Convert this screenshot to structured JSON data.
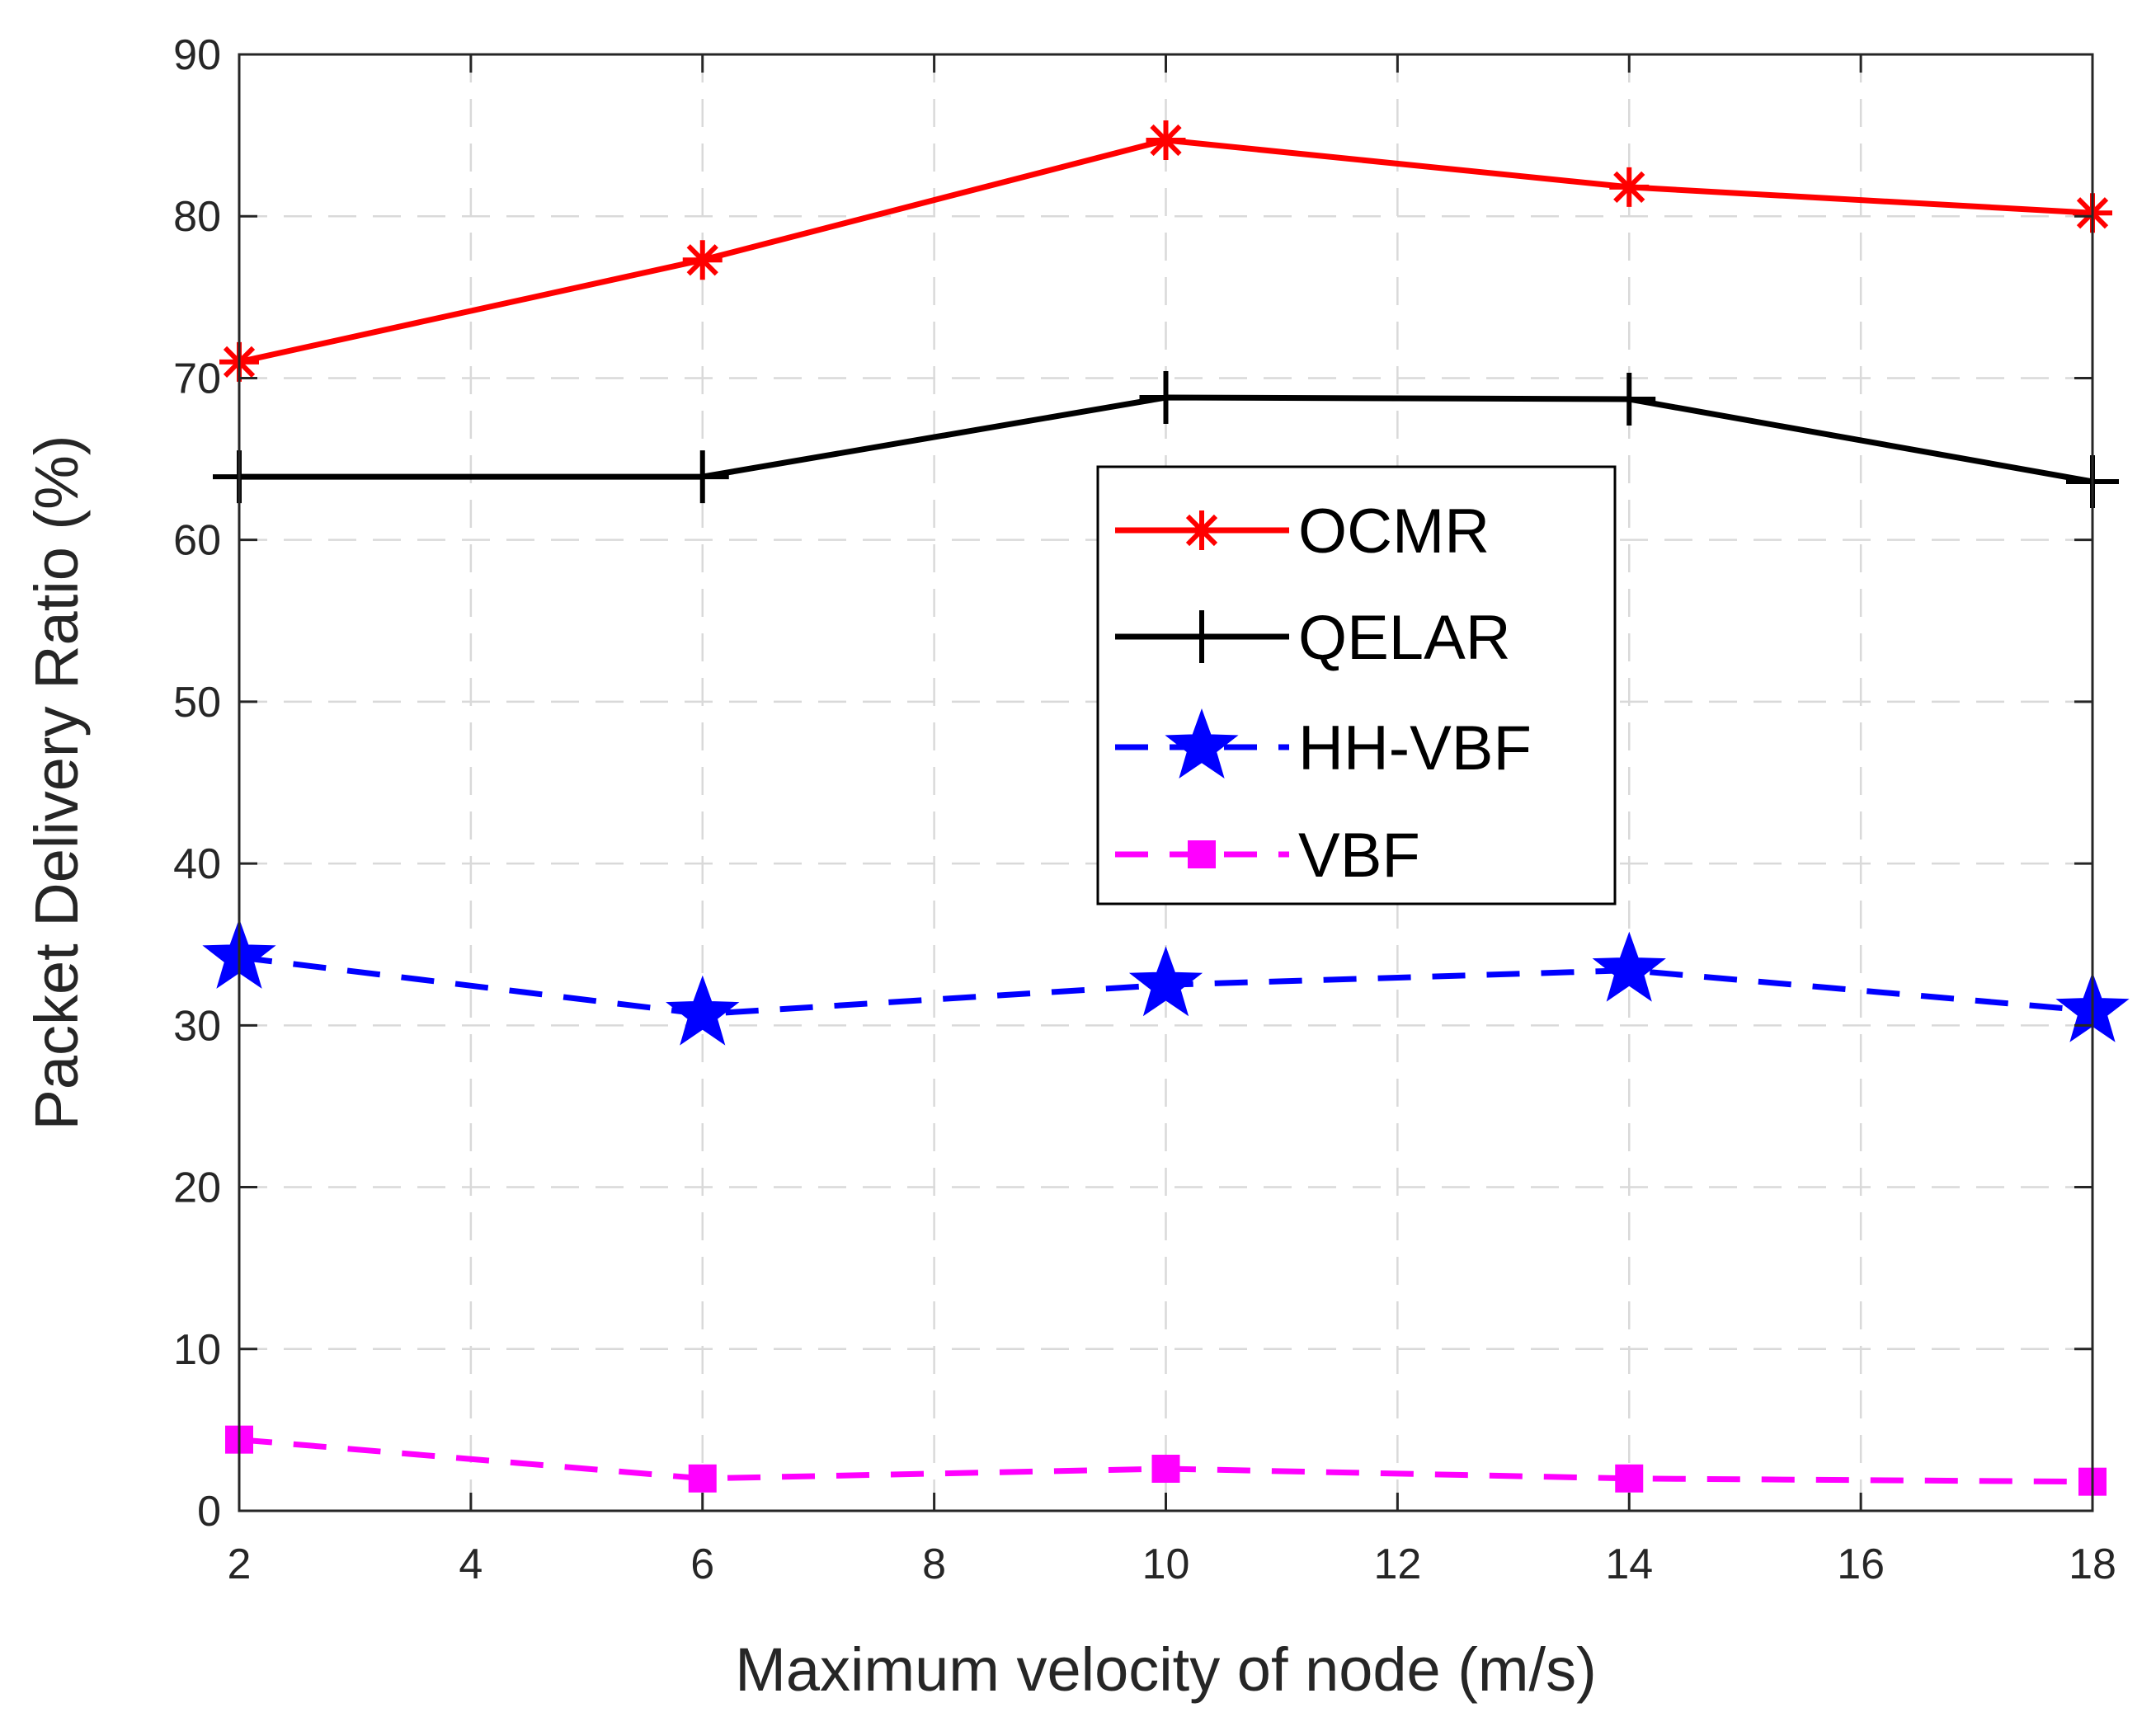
{
  "chart_data": {
    "type": "line",
    "title": "",
    "xlabel": "Maximum velocity of node (m/s)",
    "ylabel": "Packet Delivery Ratio (%)",
    "xlim": [
      2,
      18
    ],
    "ylim": [
      0,
      90
    ],
    "x_ticks": [
      2,
      4,
      6,
      8,
      10,
      12,
      14,
      16,
      18
    ],
    "y_ticks": [
      0,
      10,
      20,
      30,
      40,
      50,
      60,
      70,
      80,
      90
    ],
    "grid": true,
    "legend_position": "center",
    "x": [
      2,
      6,
      10,
      14,
      18
    ],
    "series": [
      {
        "name": "OCMR",
        "values": [
          71.0,
          77.3,
          84.7,
          81.8,
          80.2
        ],
        "color": "#ff0000",
        "line": "solid",
        "marker": "asterisk"
      },
      {
        "name": "QELAR",
        "values": [
          63.9,
          63.9,
          68.8,
          68.7,
          63.6
        ],
        "color": "#000000",
        "line": "solid",
        "marker": "plus"
      },
      {
        "name": "HH-VBF",
        "values": [
          34.2,
          30.7,
          32.5,
          33.4,
          30.9
        ],
        "color": "#0000ff",
        "line": "dashed",
        "marker": "star"
      },
      {
        "name": "VBF",
        "values": [
          4.4,
          2.0,
          2.6,
          2.0,
          1.8
        ],
        "color": "#ff00ff",
        "line": "dashed",
        "marker": "square"
      }
    ]
  }
}
